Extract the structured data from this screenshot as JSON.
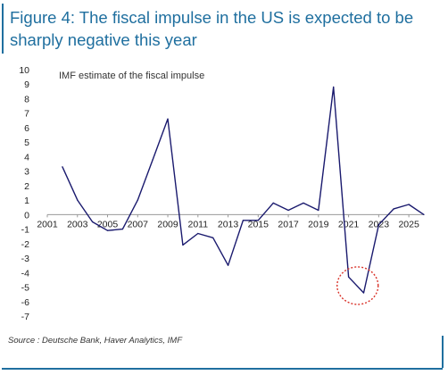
{
  "header": {
    "title": "Figure 4: The fiscal impulse in the US is expected to be sharply negative this year"
  },
  "chart_data": {
    "type": "line",
    "title": "IMF estimate of the fiscal impulse",
    "xlabel": "",
    "ylabel": "",
    "x": [
      2002,
      2003,
      2004,
      2005,
      2006,
      2007,
      2008,
      2009,
      2010,
      2011,
      2012,
      2013,
      2014,
      2015,
      2016,
      2017,
      2018,
      2019,
      2020,
      2021,
      2022,
      2023,
      2024,
      2025,
      2026
    ],
    "series": [
      {
        "name": "",
        "color": "#1a1a6e",
        "values": [
          3.3,
          1.0,
          -0.5,
          -1.1,
          -1.0,
          1.0,
          3.8,
          6.6,
          -2.1,
          -1.3,
          -1.6,
          -3.5,
          -0.4,
          -0.4,
          0.8,
          0.3,
          0.8,
          0.3,
          8.8,
          -4.3,
          -5.4,
          -0.7,
          0.4,
          0.7,
          0.0
        ]
      }
    ],
    "xticks": [
      "2001",
      "2003",
      "2005",
      "2007",
      "2009",
      "2011",
      "2013",
      "2015",
      "2017",
      "2019",
      "2021",
      "2023",
      "2025"
    ],
    "xtick_values": [
      2001,
      2003,
      2005,
      2007,
      2009,
      2011,
      2013,
      2015,
      2017,
      2019,
      2021,
      2023,
      2025
    ],
    "yticks": [
      10,
      9,
      8,
      7,
      6,
      5,
      4,
      3,
      2,
      1,
      0,
      -1,
      -2,
      -3,
      -4,
      -5,
      -6,
      -7
    ],
    "xlim": [
      2001,
      2026
    ],
    "ylim": [
      -7,
      10
    ],
    "grid": false,
    "legend": "none",
    "annotations": [
      {
        "type": "dashed-ellipse",
        "color": "#d9342b",
        "center_x": 2021.6,
        "center_y": -4.9
      }
    ]
  },
  "footer": {
    "source": "Source : Deutsche Bank, Haver Analytics, IMF"
  },
  "colors": {
    "accent": "#1f6f9f",
    "line": "#1a1a6e",
    "annotation": "#d9342b"
  }
}
